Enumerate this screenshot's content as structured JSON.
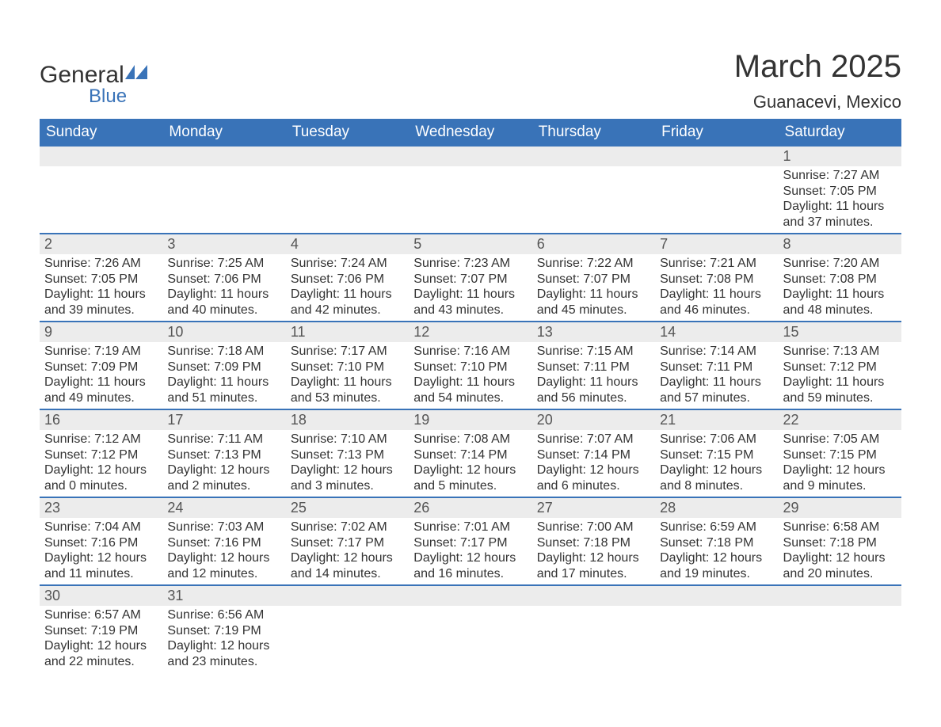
{
  "brand": {
    "word1": "General",
    "word2": "Blue",
    "icon_color": "#3973b8"
  },
  "header": {
    "month_title": "March 2025",
    "location": "Guanacevi, Mexico"
  },
  "colors": {
    "header_bg": "#3973b8",
    "header_text": "#ffffff",
    "daynum_bg": "#ececec",
    "daynum_text": "#555555",
    "body_text": "#333333",
    "row_border": "#3973b8",
    "page_bg": "#ffffff"
  },
  "typography": {
    "title_fontsize_pt": 30,
    "location_fontsize_pt": 17,
    "header_cell_fontsize_pt": 14,
    "daynum_fontsize_pt": 14,
    "body_fontsize_pt": 12
  },
  "weekdays": [
    "Sunday",
    "Monday",
    "Tuesday",
    "Wednesday",
    "Thursday",
    "Friday",
    "Saturday"
  ],
  "weeks": [
    [
      {
        "blank": true
      },
      {
        "blank": true
      },
      {
        "blank": true
      },
      {
        "blank": true
      },
      {
        "blank": true
      },
      {
        "blank": true
      },
      {
        "day": "1",
        "sunrise": "Sunrise: 7:27 AM",
        "sunset": "Sunset: 7:05 PM",
        "dl1": "Daylight: 11 hours",
        "dl2": "and 37 minutes."
      }
    ],
    [
      {
        "day": "2",
        "sunrise": "Sunrise: 7:26 AM",
        "sunset": "Sunset: 7:05 PM",
        "dl1": "Daylight: 11 hours",
        "dl2": "and 39 minutes."
      },
      {
        "day": "3",
        "sunrise": "Sunrise: 7:25 AM",
        "sunset": "Sunset: 7:06 PM",
        "dl1": "Daylight: 11 hours",
        "dl2": "and 40 minutes."
      },
      {
        "day": "4",
        "sunrise": "Sunrise: 7:24 AM",
        "sunset": "Sunset: 7:06 PM",
        "dl1": "Daylight: 11 hours",
        "dl2": "and 42 minutes."
      },
      {
        "day": "5",
        "sunrise": "Sunrise: 7:23 AM",
        "sunset": "Sunset: 7:07 PM",
        "dl1": "Daylight: 11 hours",
        "dl2": "and 43 minutes."
      },
      {
        "day": "6",
        "sunrise": "Sunrise: 7:22 AM",
        "sunset": "Sunset: 7:07 PM",
        "dl1": "Daylight: 11 hours",
        "dl2": "and 45 minutes."
      },
      {
        "day": "7",
        "sunrise": "Sunrise: 7:21 AM",
        "sunset": "Sunset: 7:08 PM",
        "dl1": "Daylight: 11 hours",
        "dl2": "and 46 minutes."
      },
      {
        "day": "8",
        "sunrise": "Sunrise: 7:20 AM",
        "sunset": "Sunset: 7:08 PM",
        "dl1": "Daylight: 11 hours",
        "dl2": "and 48 minutes."
      }
    ],
    [
      {
        "day": "9",
        "sunrise": "Sunrise: 7:19 AM",
        "sunset": "Sunset: 7:09 PM",
        "dl1": "Daylight: 11 hours",
        "dl2": "and 49 minutes."
      },
      {
        "day": "10",
        "sunrise": "Sunrise: 7:18 AM",
        "sunset": "Sunset: 7:09 PM",
        "dl1": "Daylight: 11 hours",
        "dl2": "and 51 minutes."
      },
      {
        "day": "11",
        "sunrise": "Sunrise: 7:17 AM",
        "sunset": "Sunset: 7:10 PM",
        "dl1": "Daylight: 11 hours",
        "dl2": "and 53 minutes."
      },
      {
        "day": "12",
        "sunrise": "Sunrise: 7:16 AM",
        "sunset": "Sunset: 7:10 PM",
        "dl1": "Daylight: 11 hours",
        "dl2": "and 54 minutes."
      },
      {
        "day": "13",
        "sunrise": "Sunrise: 7:15 AM",
        "sunset": "Sunset: 7:11 PM",
        "dl1": "Daylight: 11 hours",
        "dl2": "and 56 minutes."
      },
      {
        "day": "14",
        "sunrise": "Sunrise: 7:14 AM",
        "sunset": "Sunset: 7:11 PM",
        "dl1": "Daylight: 11 hours",
        "dl2": "and 57 minutes."
      },
      {
        "day": "15",
        "sunrise": "Sunrise: 7:13 AM",
        "sunset": "Sunset: 7:12 PM",
        "dl1": "Daylight: 11 hours",
        "dl2": "and 59 minutes."
      }
    ],
    [
      {
        "day": "16",
        "sunrise": "Sunrise: 7:12 AM",
        "sunset": "Sunset: 7:12 PM",
        "dl1": "Daylight: 12 hours",
        "dl2": "and 0 minutes."
      },
      {
        "day": "17",
        "sunrise": "Sunrise: 7:11 AM",
        "sunset": "Sunset: 7:13 PM",
        "dl1": "Daylight: 12 hours",
        "dl2": "and 2 minutes."
      },
      {
        "day": "18",
        "sunrise": "Sunrise: 7:10 AM",
        "sunset": "Sunset: 7:13 PM",
        "dl1": "Daylight: 12 hours",
        "dl2": "and 3 minutes."
      },
      {
        "day": "19",
        "sunrise": "Sunrise: 7:08 AM",
        "sunset": "Sunset: 7:14 PM",
        "dl1": "Daylight: 12 hours",
        "dl2": "and 5 minutes."
      },
      {
        "day": "20",
        "sunrise": "Sunrise: 7:07 AM",
        "sunset": "Sunset: 7:14 PM",
        "dl1": "Daylight: 12 hours",
        "dl2": "and 6 minutes."
      },
      {
        "day": "21",
        "sunrise": "Sunrise: 7:06 AM",
        "sunset": "Sunset: 7:15 PM",
        "dl1": "Daylight: 12 hours",
        "dl2": "and 8 minutes."
      },
      {
        "day": "22",
        "sunrise": "Sunrise: 7:05 AM",
        "sunset": "Sunset: 7:15 PM",
        "dl1": "Daylight: 12 hours",
        "dl2": "and 9 minutes."
      }
    ],
    [
      {
        "day": "23",
        "sunrise": "Sunrise: 7:04 AM",
        "sunset": "Sunset: 7:16 PM",
        "dl1": "Daylight: 12 hours",
        "dl2": "and 11 minutes."
      },
      {
        "day": "24",
        "sunrise": "Sunrise: 7:03 AM",
        "sunset": "Sunset: 7:16 PM",
        "dl1": "Daylight: 12 hours",
        "dl2": "and 12 minutes."
      },
      {
        "day": "25",
        "sunrise": "Sunrise: 7:02 AM",
        "sunset": "Sunset: 7:17 PM",
        "dl1": "Daylight: 12 hours",
        "dl2": "and 14 minutes."
      },
      {
        "day": "26",
        "sunrise": "Sunrise: 7:01 AM",
        "sunset": "Sunset: 7:17 PM",
        "dl1": "Daylight: 12 hours",
        "dl2": "and 16 minutes."
      },
      {
        "day": "27",
        "sunrise": "Sunrise: 7:00 AM",
        "sunset": "Sunset: 7:18 PM",
        "dl1": "Daylight: 12 hours",
        "dl2": "and 17 minutes."
      },
      {
        "day": "28",
        "sunrise": "Sunrise: 6:59 AM",
        "sunset": "Sunset: 7:18 PM",
        "dl1": "Daylight: 12 hours",
        "dl2": "and 19 minutes."
      },
      {
        "day": "29",
        "sunrise": "Sunrise: 6:58 AM",
        "sunset": "Sunset: 7:18 PM",
        "dl1": "Daylight: 12 hours",
        "dl2": "and 20 minutes."
      }
    ],
    [
      {
        "day": "30",
        "sunrise": "Sunrise: 6:57 AM",
        "sunset": "Sunset: 7:19 PM",
        "dl1": "Daylight: 12 hours",
        "dl2": "and 22 minutes."
      },
      {
        "day": "31",
        "sunrise": "Sunrise: 6:56 AM",
        "sunset": "Sunset: 7:19 PM",
        "dl1": "Daylight: 12 hours",
        "dl2": "and 23 minutes."
      },
      {
        "blank": true
      },
      {
        "blank": true
      },
      {
        "blank": true
      },
      {
        "blank": true
      },
      {
        "blank": true
      }
    ]
  ]
}
